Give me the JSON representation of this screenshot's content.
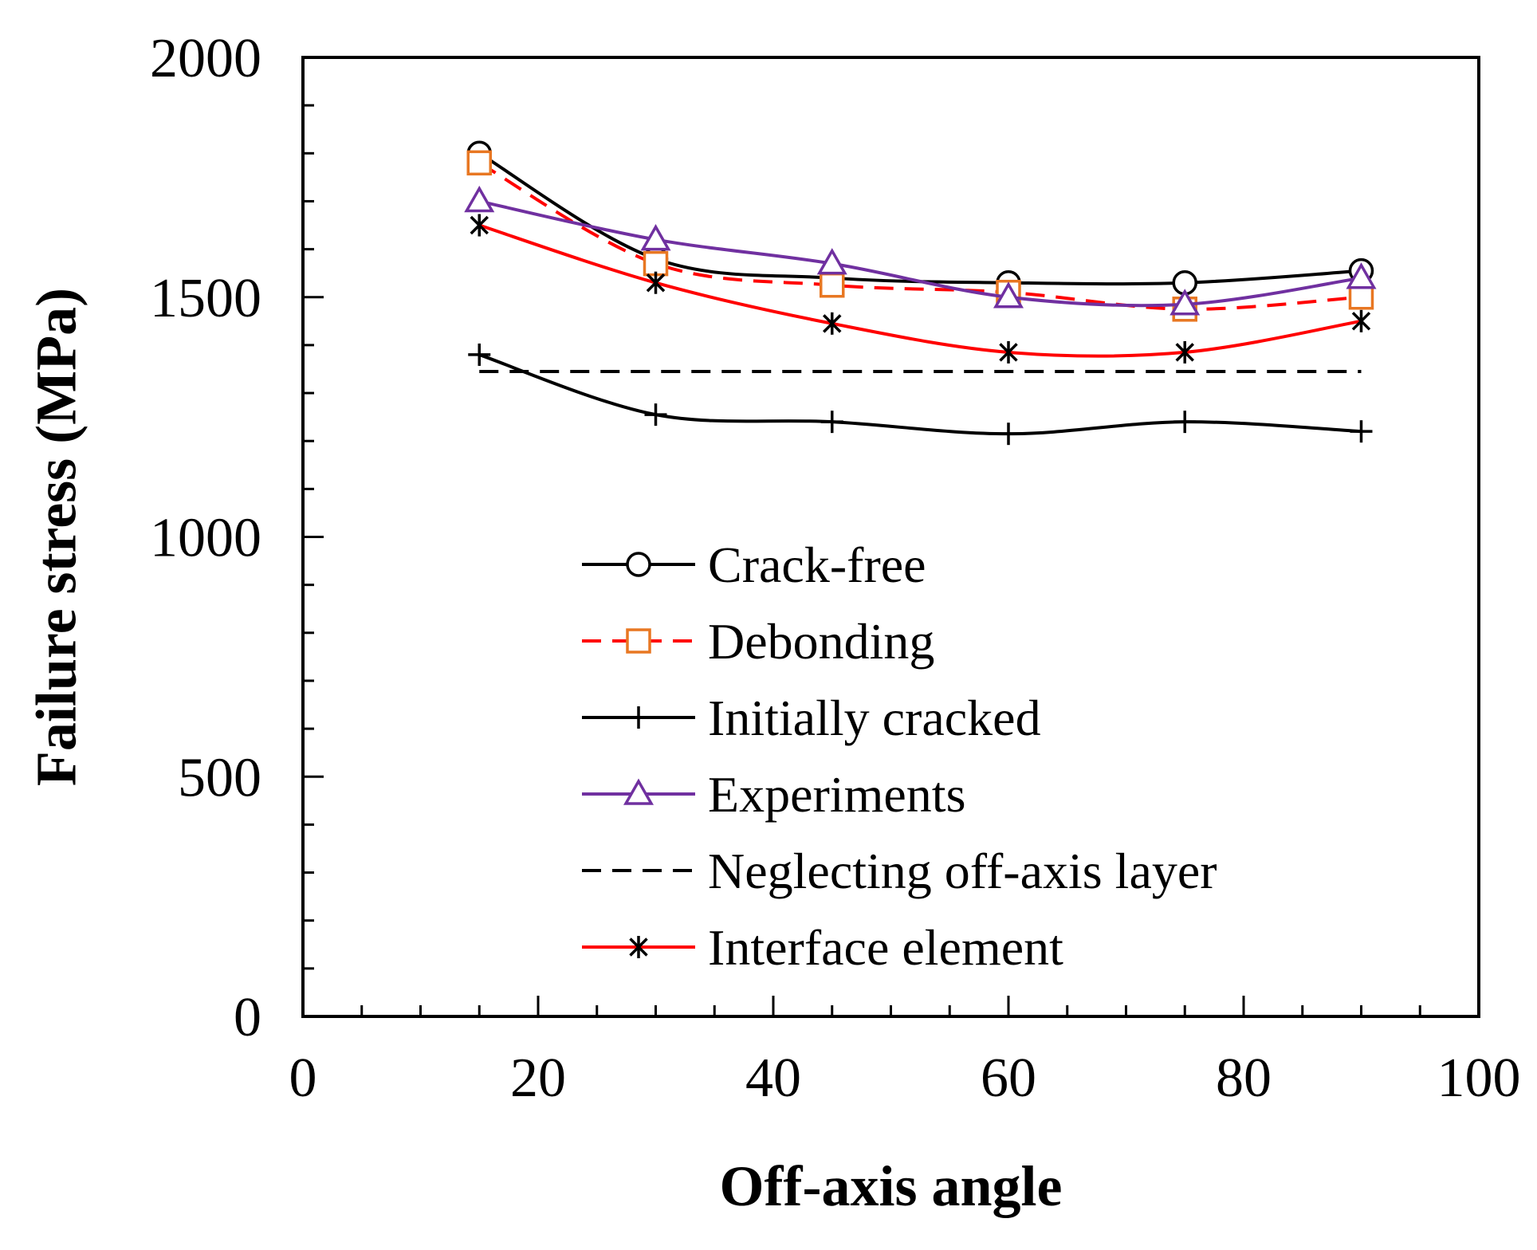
{
  "chart_data": {
    "type": "line",
    "title": "",
    "xlabel": "Off-axis angle",
    "ylabel": "Failure stress (MPa)",
    "xlim": [
      0,
      100
    ],
    "ylim": [
      0,
      2000
    ],
    "x_ticks": [
      0,
      20,
      40,
      60,
      80,
      100
    ],
    "y_ticks": [
      0,
      500,
      1000,
      1500,
      2000
    ],
    "x_minor_step": 5,
    "y_minor_step": 100,
    "grid": false,
    "legend_position": "lower-center",
    "series": [
      {
        "name": "Crack-free",
        "color": "#000000",
        "line_style": "solid",
        "marker": "circle",
        "marker_color": "#000000",
        "x": [
          15,
          30,
          45,
          60,
          75,
          90
        ],
        "values": [
          1800,
          1580,
          1540,
          1530,
          1530,
          1555
        ]
      },
      {
        "name": "Debonding",
        "color": "#ff0000",
        "line_style": "dashed",
        "marker": "square",
        "marker_color": "#e87722",
        "x": [
          15,
          30,
          45,
          60,
          75,
          90
        ],
        "values": [
          1780,
          1570,
          1525,
          1510,
          1475,
          1500
        ]
      },
      {
        "name": "Initially cracked",
        "color": "#000000",
        "line_style": "solid",
        "marker": "plus",
        "marker_color": "#000000",
        "x": [
          15,
          30,
          45,
          60,
          75,
          90
        ],
        "values": [
          1380,
          1255,
          1240,
          1215,
          1240,
          1220
        ]
      },
      {
        "name": "Experiments",
        "color": "#7030a0",
        "line_style": "solid",
        "marker": "triangle",
        "marker_color": "#7030a0",
        "x": [
          15,
          30,
          45,
          60,
          75,
          90
        ],
        "values": [
          1700,
          1620,
          1570,
          1500,
          1485,
          1540
        ]
      },
      {
        "name": "Neglecting off-axis layer",
        "color": "#000000",
        "line_style": "dashed",
        "marker": "none",
        "marker_color": "#000000",
        "x": [
          15,
          90
        ],
        "values": [
          1345,
          1345
        ]
      },
      {
        "name": "Interface element",
        "color": "#ff0000",
        "line_style": "solid",
        "marker": "asterisk",
        "marker_color": "#000000",
        "x": [
          15,
          30,
          45,
          60,
          75,
          90
        ],
        "values": [
          1650,
          1530,
          1445,
          1385,
          1385,
          1450
        ]
      }
    ]
  }
}
